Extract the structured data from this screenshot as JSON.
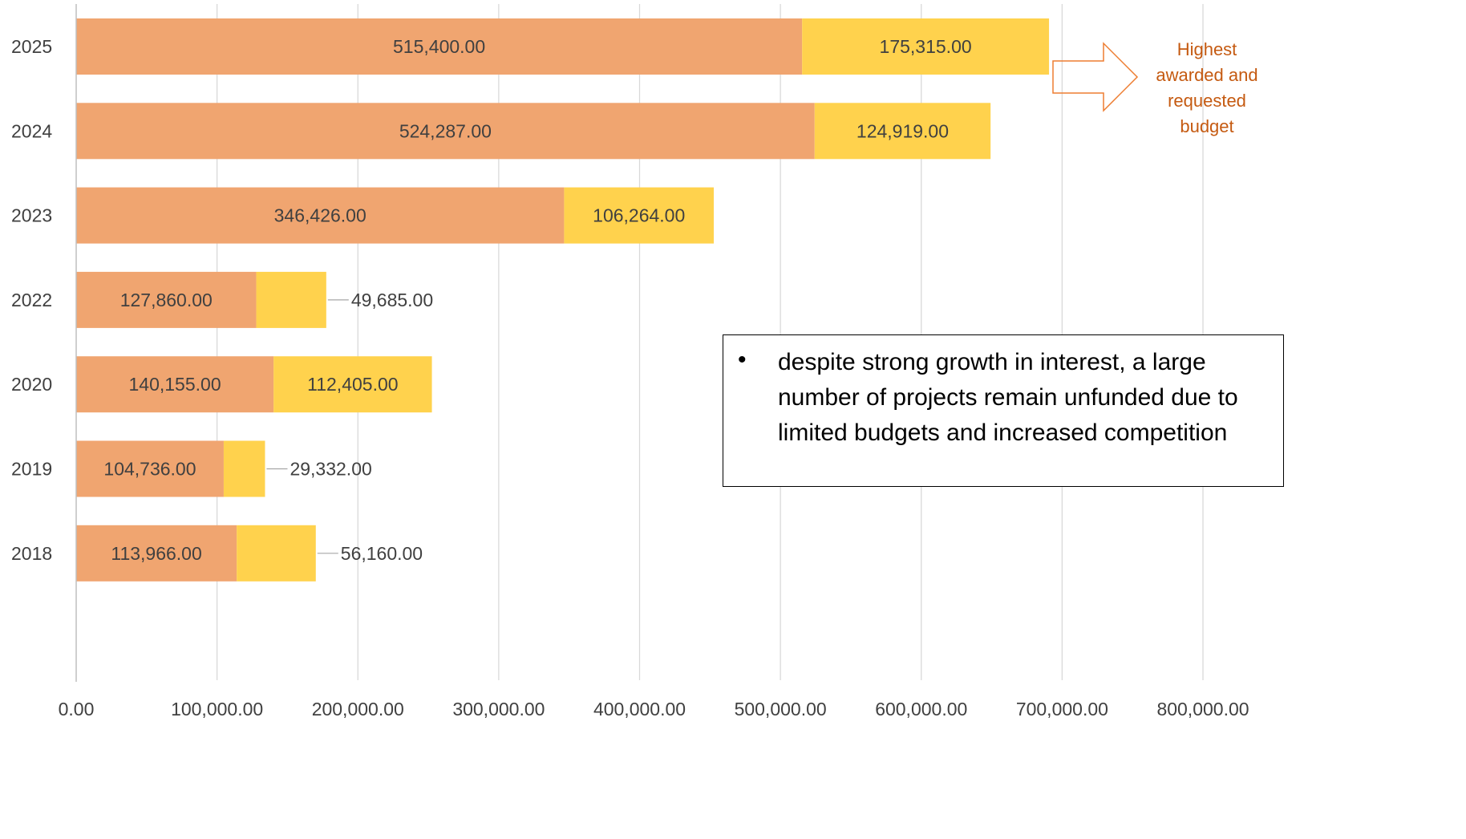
{
  "chart_data": {
    "type": "bar",
    "orientation": "horizontal",
    "stacked": true,
    "categories": [
      "2025",
      "2024",
      "2023",
      "2022",
      "2020",
      "2019",
      "2018"
    ],
    "series": [
      {
        "values": [
          515400,
          524287,
          346426,
          127860,
          140155,
          104736,
          113966
        ],
        "color": "#f0a570"
      },
      {
        "values": [
          175315,
          124919,
          106264,
          49685,
          112405,
          29332,
          56160
        ],
        "color": "#ffd24d"
      }
    ],
    "data_labels": {
      "series_0": [
        "515,400.00",
        "524,287.00",
        "346,426.00",
        "127,860.00",
        "140,155.00",
        "104,736.00",
        "113,966.00"
      ],
      "series_1": [
        "175,315.00",
        "124,919.00",
        "106,264.00",
        "49,685.00",
        "112,405.00",
        "29,332.00",
        "56,160.00"
      ],
      "series_1_outside": [
        false,
        false,
        false,
        true,
        false,
        true,
        true
      ]
    },
    "x_ticks": [
      "0.00",
      "100,000.00",
      "200,000.00",
      "300,000.00",
      "400,000.00",
      "500,000.00",
      "600,000.00",
      "700,000.00",
      "800,000.00"
    ],
    "xlim": [
      0,
      800000
    ],
    "grid": true,
    "legend": "none"
  },
  "annotations": {
    "callout": {
      "lines": [
        "Highest",
        "awarded and",
        "requested",
        "budget"
      ],
      "color": "#c55a11"
    },
    "note": {
      "bullet": "•",
      "text": "despite strong growth in interest, a large number of projects remain unfunded due to limited budgets and increased competition"
    }
  }
}
